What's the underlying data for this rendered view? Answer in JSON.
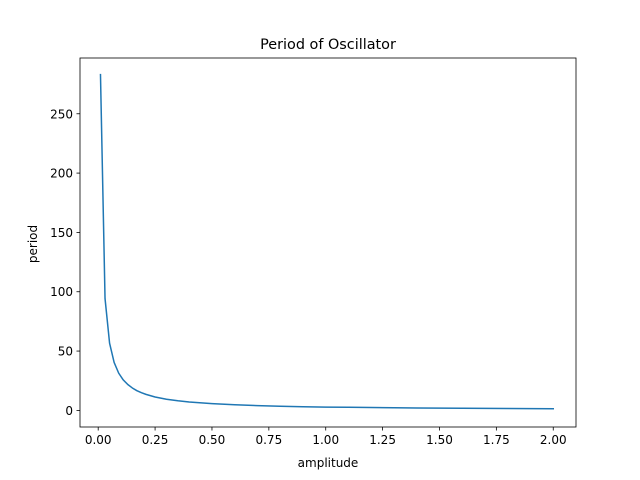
{
  "chart_data": {
    "type": "line",
    "title": "Period of Oscillator",
    "xlabel": "amplitude",
    "ylabel": "period",
    "xlim": [
      -0.08,
      2.1
    ],
    "ylim": [
      -14,
      297
    ],
    "grid": false,
    "xticks": [
      {
        "value": 0.0,
        "label": "0.00"
      },
      {
        "value": 0.25,
        "label": "0.25"
      },
      {
        "value": 0.5,
        "label": "0.50"
      },
      {
        "value": 0.75,
        "label": "0.75"
      },
      {
        "value": 1.0,
        "label": "1.00"
      },
      {
        "value": 1.25,
        "label": "1.25"
      },
      {
        "value": 1.5,
        "label": "1.50"
      },
      {
        "value": 1.75,
        "label": "1.75"
      },
      {
        "value": 2.0,
        "label": "2.00"
      }
    ],
    "yticks": [
      {
        "value": 0,
        "label": "0"
      },
      {
        "value": 50,
        "label": "50"
      },
      {
        "value": 100,
        "label": "100"
      },
      {
        "value": 150,
        "label": "150"
      },
      {
        "value": 200,
        "label": "200"
      },
      {
        "value": 250,
        "label": "250"
      }
    ],
    "series": [
      {
        "color": "#1f77b4",
        "x": [
          0.01,
          0.03,
          0.05,
          0.07,
          0.09,
          0.11,
          0.13,
          0.15,
          0.17,
          0.19,
          0.21,
          0.25,
          0.3,
          0.35,
          0.4,
          0.5,
          0.6,
          0.7,
          0.8,
          0.9,
          1.0,
          1.1,
          1.2,
          1.3,
          1.4,
          1.5,
          1.6,
          1.7,
          1.8,
          1.9,
          2.0
        ],
        "y": [
          283,
          94.3,
          56.6,
          40.4,
          31.4,
          25.7,
          21.8,
          18.9,
          16.6,
          14.9,
          13.5,
          11.3,
          9.4,
          8.1,
          7.1,
          5.7,
          4.7,
          4.0,
          3.5,
          3.1,
          2.8,
          2.6,
          2.4,
          2.2,
          2.0,
          1.9,
          1.8,
          1.7,
          1.6,
          1.5,
          1.4
        ]
      }
    ]
  }
}
